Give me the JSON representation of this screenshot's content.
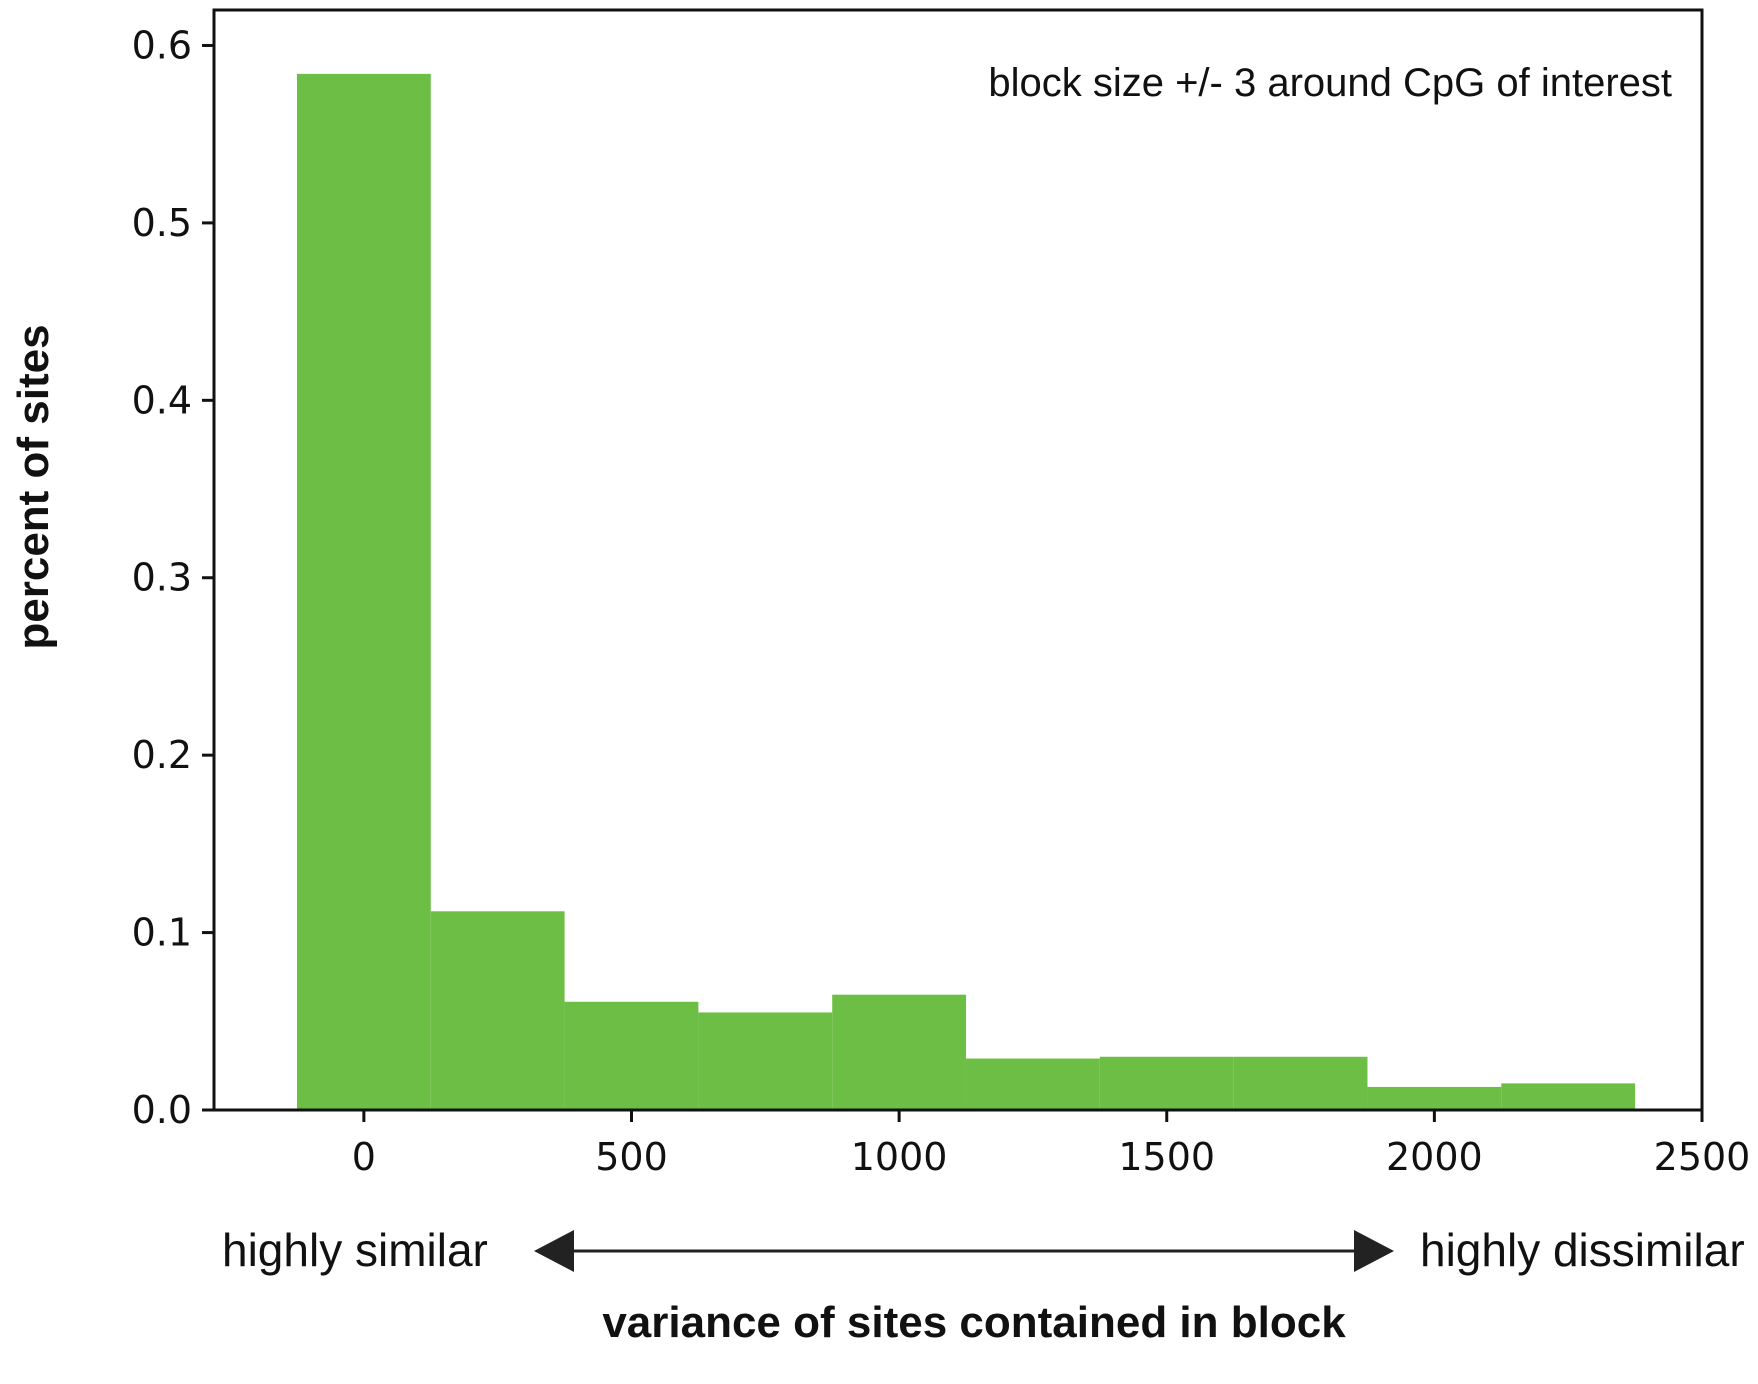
{
  "chart_data": {
    "type": "bar",
    "bin_centers": [
      0,
      250,
      500,
      750,
      1000,
      1250,
      1500,
      1750,
      2000,
      2250
    ],
    "bin_width": 250,
    "values": [
      0.584,
      0.112,
      0.061,
      0.055,
      0.065,
      0.029,
      0.03,
      0.03,
      0.013,
      0.015
    ],
    "xlim": [
      -280,
      2500
    ],
    "ylim": [
      0,
      0.62
    ],
    "xticks": [
      "0",
      "500",
      "1000",
      "1500",
      "2000",
      "2500"
    ],
    "yticks": [
      "0.0",
      "0.1",
      "0.2",
      "0.3",
      "0.4",
      "0.5",
      "0.6"
    ],
    "xlabel": "variance of sites contained in block",
    "ylabel": "percent of sites",
    "annotation": "block size +/- 3 around CpG of interest",
    "left_label": "highly similar",
    "right_label": "highly dissimilar",
    "bar_color": "#6dbe45",
    "grid": false
  }
}
